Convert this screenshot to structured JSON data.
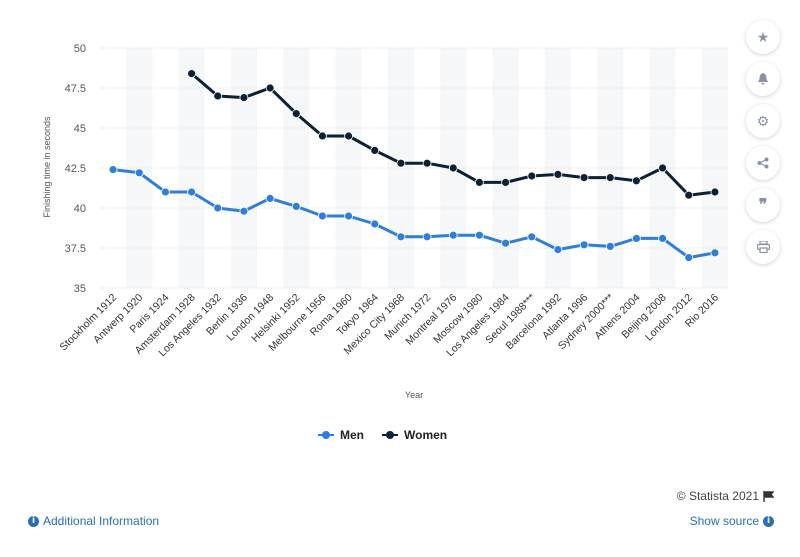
{
  "chart_data": {
    "type": "line",
    "xlabel": "Year",
    "ylabel": "Finishing time in seconds",
    "ylim": [
      35,
      50
    ],
    "yticks": [
      "35",
      "37.5",
      "40",
      "42.5",
      "45",
      "47.5",
      "50"
    ],
    "categories": [
      "Stockholm 1912",
      "Antwerp 1920",
      "Paris 1924",
      "Amsterdam 1928",
      "Los Angeles 1932",
      "Berlin 1936",
      "London 1948",
      "Helsinki 1952",
      "Melbourne 1956",
      "Roma 1960",
      "Tokyo 1964",
      "Mexico City 1968",
      "Munich 1972",
      "Montreal 1976",
      "Moscow 1980",
      "Los Angeles 1984",
      "Seoul 1988***",
      "Barcelona 1992",
      "Atlanta 1996",
      "Sydney 2000***",
      "Athens 2004",
      "Beijing 2008",
      "London 2012",
      "Rio 2016"
    ],
    "series": [
      {
        "name": "Men",
        "color": "#2f7ed8",
        "values": [
          42.4,
          42.2,
          41.0,
          41.0,
          40.0,
          39.8,
          40.6,
          40.1,
          39.5,
          39.5,
          39.0,
          38.2,
          38.2,
          38.3,
          38.3,
          37.8,
          38.2,
          37.4,
          37.7,
          37.6,
          38.1,
          38.1,
          36.9,
          37.2
        ]
      },
      {
        "name": "Women",
        "color": "#0d2035",
        "values": [
          null,
          null,
          null,
          48.4,
          47.0,
          46.9,
          47.5,
          45.9,
          44.5,
          44.5,
          43.6,
          42.8,
          42.8,
          42.5,
          41.6,
          41.6,
          42.0,
          42.1,
          41.9,
          41.9,
          41.7,
          42.5,
          40.8,
          41.0
        ]
      }
    ],
    "grid": true,
    "legend_position": "bottom-center"
  },
  "sidebar": {
    "icons": [
      "star-icon",
      "bell-icon",
      "gear-icon",
      "share-icon",
      "quote-icon",
      "print-icon"
    ]
  },
  "footer": {
    "credit": "© Statista 2021",
    "additional_info": "Additional Information",
    "show_source": "Show source"
  }
}
